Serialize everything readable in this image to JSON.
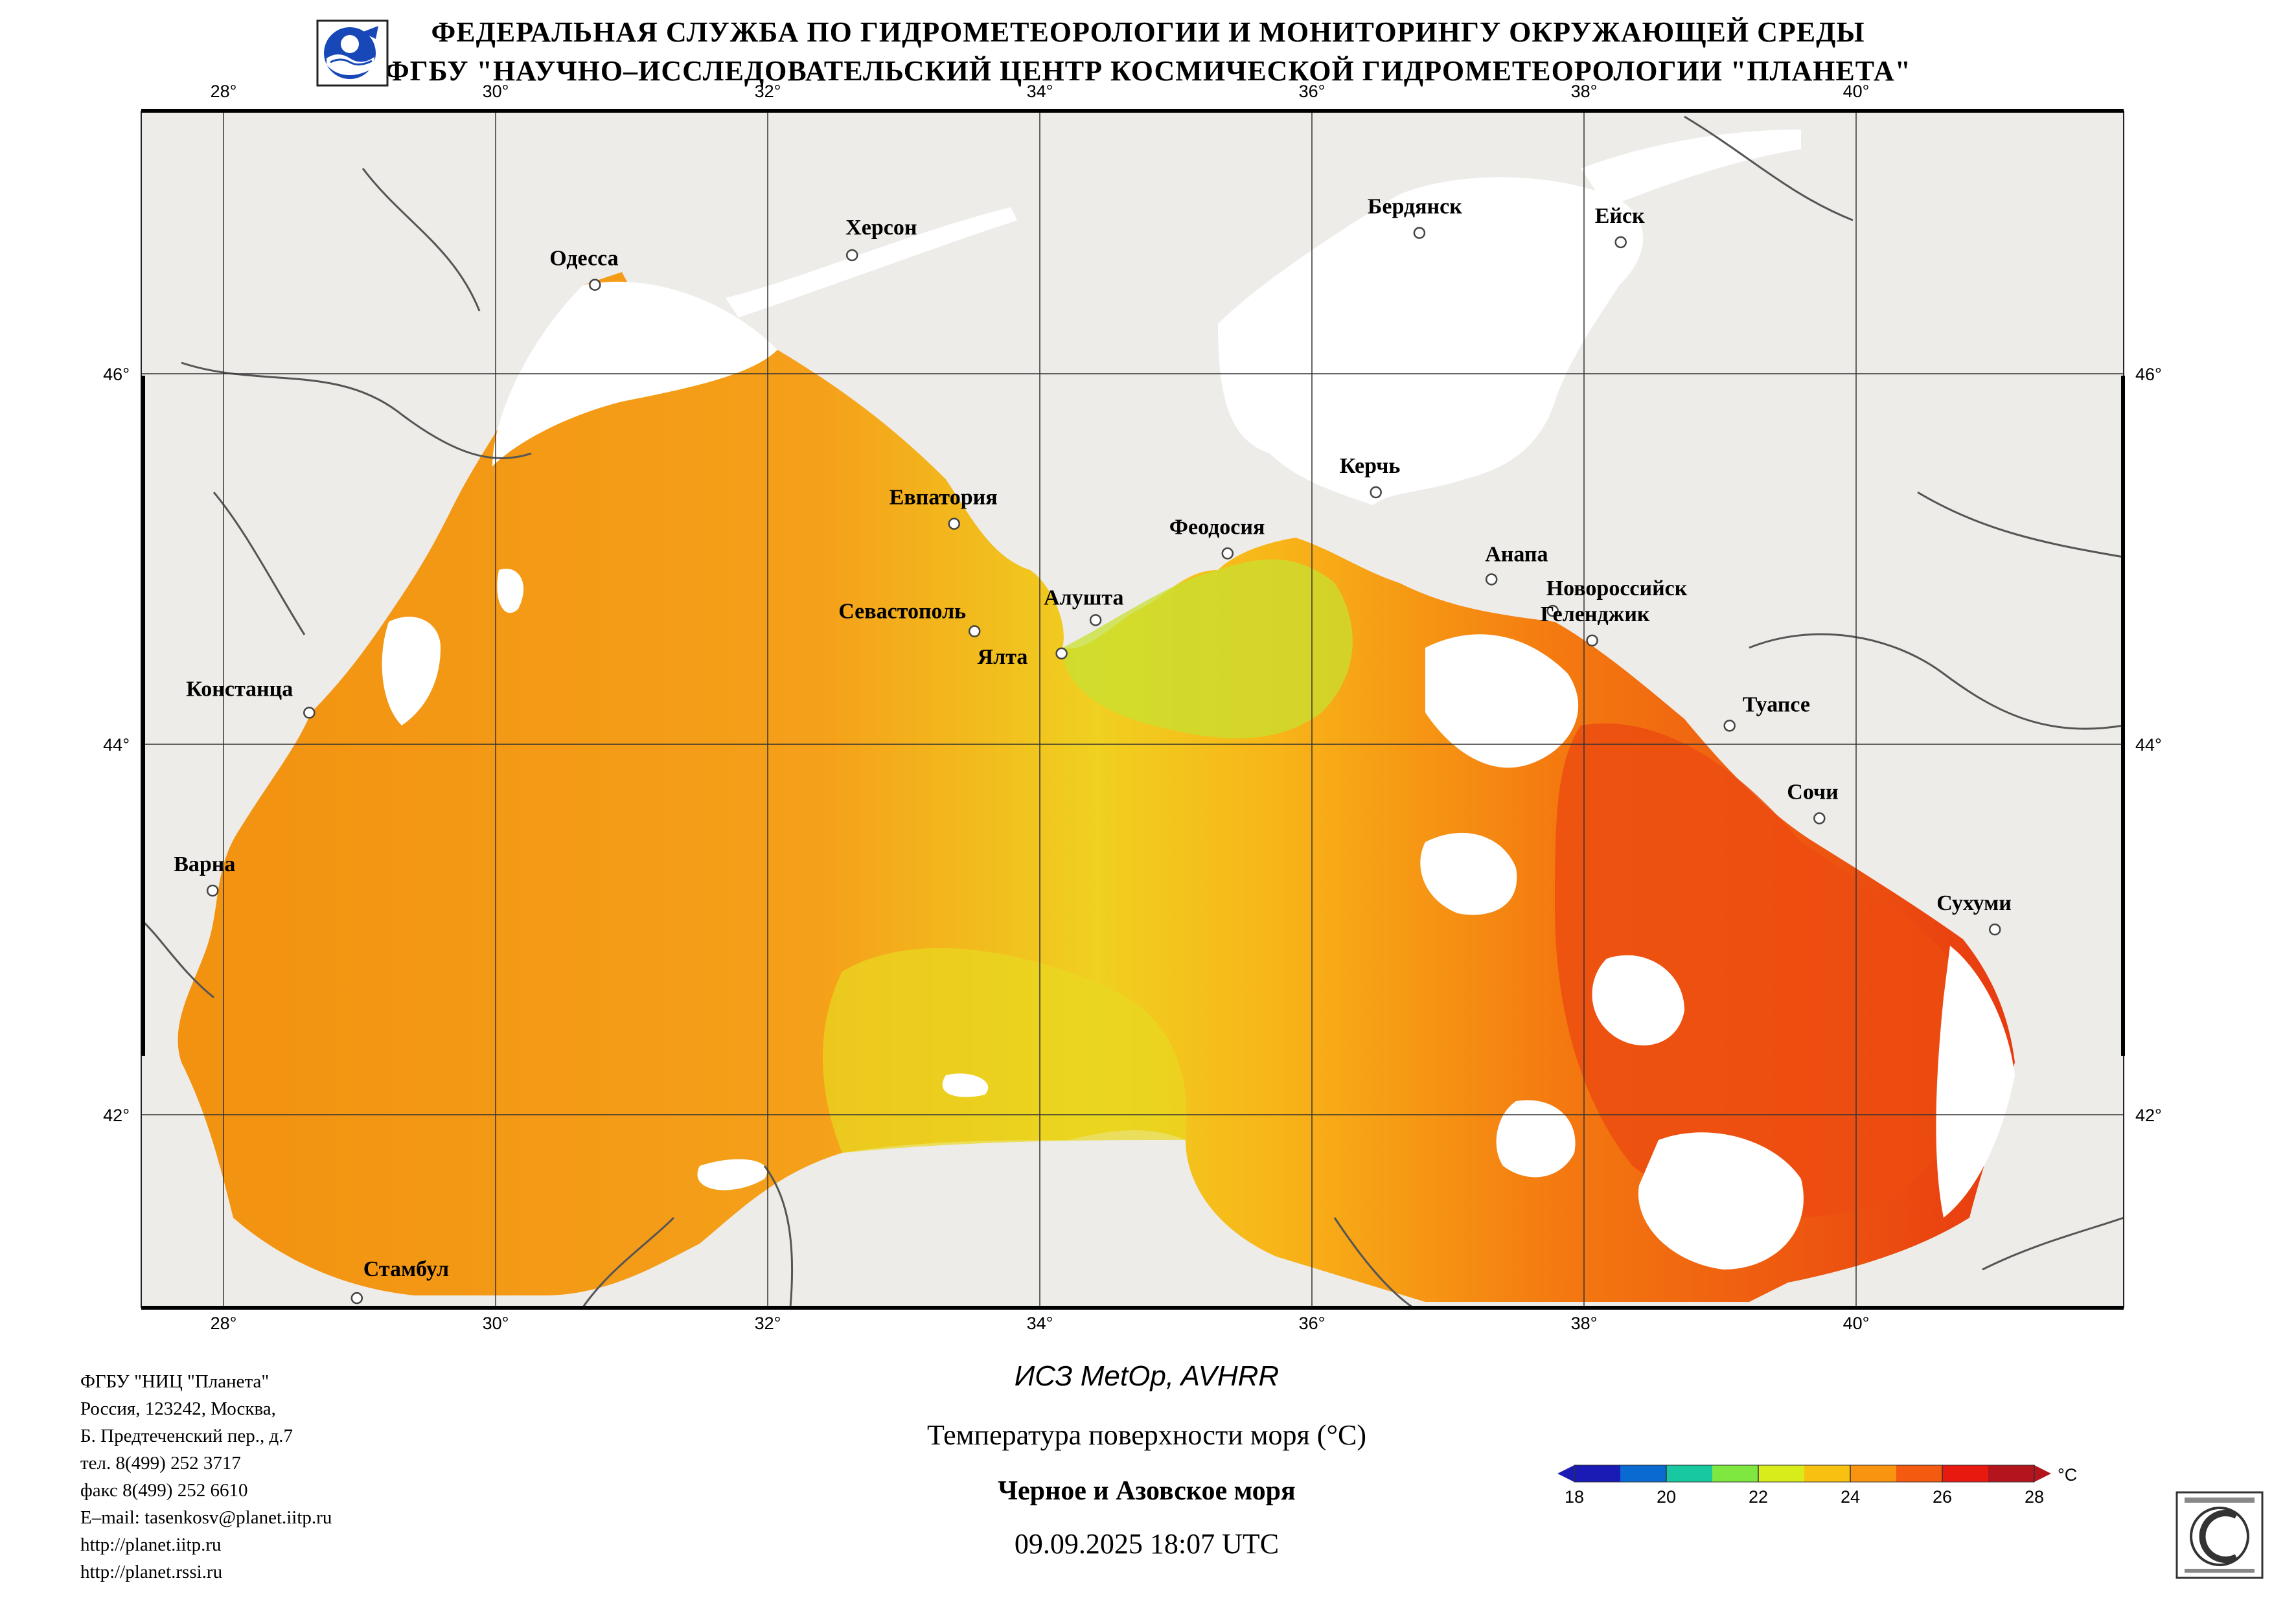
{
  "header": {
    "line1": "ФЕДЕРАЛЬНАЯ СЛУЖБА ПО ГИДРОМЕТЕОРОЛОГИИ И МОНИТОРИНГУ ОКРУЖАЮЩЕЙ СРЕДЫ",
    "line2": "ФГБУ \"НАУЧНО–ИССЛЕДОВАТЕЛЬСКИЙ ЦЕНТР КОСМИЧЕСКОЙ ГИДРОМЕТЕОРОЛОГИИ \"ПЛАНЕТА\""
  },
  "map": {
    "lon_ticks": [
      "28°",
      "30°",
      "32°",
      "34°",
      "36°",
      "38°",
      "40°"
    ],
    "lat_ticks": [
      "46°",
      "44°",
      "42°"
    ],
    "cities": [
      {
        "name": "Одесса",
        "lon": 30.73,
        "lat": 46.48
      },
      {
        "name": "Херсон",
        "lon": 32.62,
        "lat": 46.64
      },
      {
        "name": "Бердянск",
        "lon": 36.79,
        "lat": 46.76
      },
      {
        "name": "Ейск",
        "lon": 38.27,
        "lat": 46.71
      },
      {
        "name": "Евпатория",
        "lon": 33.37,
        "lat": 45.19
      },
      {
        "name": "Керчь",
        "lon": 36.47,
        "lat": 45.36
      },
      {
        "name": "Феодосия",
        "lon": 35.38,
        "lat": 45.03
      },
      {
        "name": "Анапа",
        "lon": 37.32,
        "lat": 44.89
      },
      {
        "name": "Севастополь",
        "lon": 33.52,
        "lat": 44.61
      },
      {
        "name": "Алушта",
        "lon": 34.41,
        "lat": 44.67
      },
      {
        "name": "Новороссийск",
        "lon": 37.77,
        "lat": 44.72
      },
      {
        "name": "Геленджик",
        "lon": 38.06,
        "lat": 44.56
      },
      {
        "name": "Ялта",
        "lon": 34.16,
        "lat": 44.49
      },
      {
        "name": "Констанца",
        "lon": 28.63,
        "lat": 44.17
      },
      {
        "name": "Туапсе",
        "lon": 39.07,
        "lat": 44.1
      },
      {
        "name": "Сочи",
        "lon": 39.73,
        "lat": 43.6
      },
      {
        "name": "Варна",
        "lon": 27.92,
        "lat": 43.21
      },
      {
        "name": "Сухуми",
        "lon": 41.02,
        "lat": 43.0
      },
      {
        "name": "Стамбул",
        "lon": 28.98,
        "lat": 41.01
      }
    ]
  },
  "colorbar": {
    "labels": [
      "18",
      "20",
      "22",
      "24",
      "26",
      "28"
    ],
    "unit": "°C",
    "colors": [
      "#1a1ab4",
      "#0a6ad2",
      "#17c8a0",
      "#7ee840",
      "#d8ec1c",
      "#f8c010",
      "#f89410",
      "#f45a10",
      "#e81a10",
      "#b4141c"
    ]
  },
  "footer": {
    "lines": [
      "ФГБУ \"НИЦ \"Планета\"",
      "Россия, 123242, Москва,",
      "Б. Предтеченский пер., д.7",
      "тел. 8(499) 252 3717",
      "факс 8(499) 252 6610",
      "E–mail: tasenkosv@planet.iitp.ru",
      "http://planet.iitp.ru",
      "http://planet.rssi.ru"
    ],
    "satellite": "ИСЗ MetOp, AVHRR",
    "parameter": "Температура поверхности моря (°C)",
    "region": "Черное и Азовское моря",
    "datetime": "09.09.2025 18:07 UTC"
  }
}
